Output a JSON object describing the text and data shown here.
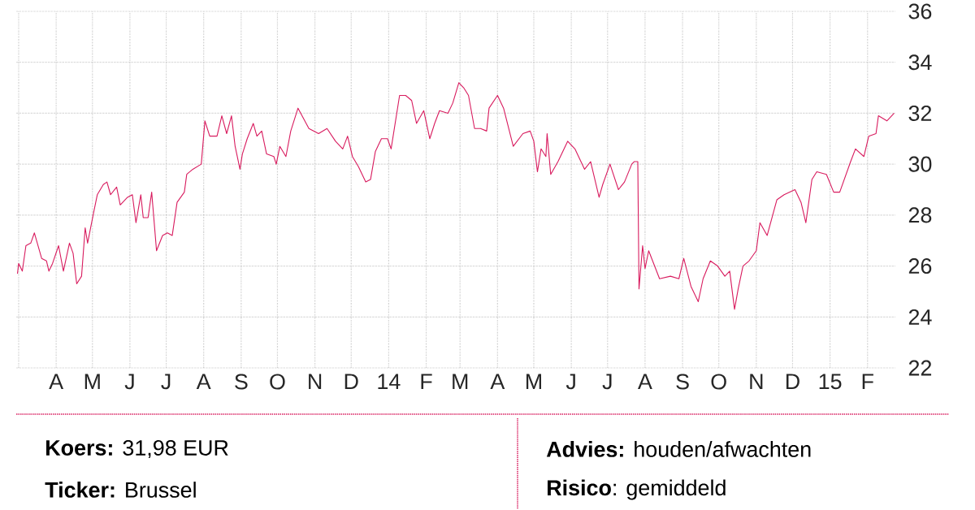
{
  "chart_data": {
    "type": "line",
    "color": "#d81b5e",
    "grid": true,
    "x": [
      "2013-02-28",
      "2013-03-01",
      "2013-03-04",
      "2013-03-07",
      "2013-03-11",
      "2013-03-14",
      "2013-03-20",
      "2013-03-24",
      "2013-03-26",
      "2013-03-29",
      "2013-04-03",
      "2013-04-07",
      "2013-04-12",
      "2013-04-15",
      "2013-04-18",
      "2013-04-22",
      "2013-04-25",
      "2013-04-27",
      "2013-05-02",
      "2013-05-05",
      "2013-05-10",
      "2013-05-13",
      "2013-05-16",
      "2013-05-21",
      "2013-05-24",
      "2013-05-30",
      "2013-06-03",
      "2013-06-06",
      "2013-06-10",
      "2013-06-12",
      "2013-06-16",
      "2013-06-19",
      "2013-06-23",
      "2013-06-28",
      "2013-07-02",
      "2013-07-06",
      "2013-07-10",
      "2013-07-16",
      "2013-07-18",
      "2013-07-23",
      "2013-07-30",
      "2013-08-02",
      "2013-08-06",
      "2013-08-12",
      "2013-08-16",
      "2013-08-20",
      "2013-08-24",
      "2013-08-27",
      "2013-08-31",
      "2013-09-02",
      "2013-09-06",
      "2013-09-11",
      "2013-09-14",
      "2013-09-18",
      "2013-09-22",
      "2013-09-28",
      "2013-09-30",
      "2013-10-03",
      "2013-10-08",
      "2013-10-12",
      "2013-10-18",
      "2013-10-27",
      "2013-11-04",
      "2013-11-11",
      "2013-11-18",
      "2013-11-24",
      "2013-11-28",
      "2013-12-02",
      "2013-12-07",
      "2013-12-13",
      "2013-12-17",
      "2013-12-21",
      "2013-12-26",
      "2013-12-31",
      "2014-01-03",
      "2014-01-10",
      "2014-01-15",
      "2014-01-20",
      "2014-01-24",
      "2014-01-30",
      "2014-02-04",
      "2014-02-08",
      "2014-02-12",
      "2014-02-19",
      "2014-02-23",
      "2014-02-28",
      "2014-03-04",
      "2014-03-08",
      "2014-03-13",
      "2014-03-18",
      "2014-03-23",
      "2014-03-25",
      "2014-04-01",
      "2014-04-06",
      "2014-04-14",
      "2014-04-22",
      "2014-04-28",
      "2014-05-01",
      "2014-05-04",
      "2014-05-07",
      "2014-05-11",
      "2014-05-12",
      "2014-05-15",
      "2014-05-21",
      "2014-05-29",
      "2014-06-04",
      "2014-06-12",
      "2014-06-17",
      "2014-06-24",
      "2014-06-27",
      "2014-07-03",
      "2014-07-10",
      "2014-07-15",
      "2014-07-21",
      "2014-07-23",
      "2014-07-26",
      "2014-07-27",
      "2014-07-30",
      "2014-08-01",
      "2014-08-04",
      "2014-08-13",
      "2014-08-22",
      "2014-08-29",
      "2014-09-02",
      "2014-09-08",
      "2014-09-14",
      "2014-09-18",
      "2014-09-24",
      "2014-09-30",
      "2014-10-06",
      "2014-10-10",
      "2014-10-14",
      "2014-10-17",
      "2014-10-21",
      "2014-10-26",
      "2014-11-01",
      "2014-11-04",
      "2014-11-10",
      "2014-11-18",
      "2014-11-24",
      "2014-12-03",
      "2014-12-08",
      "2014-12-12",
      "2014-12-17",
      "2014-12-21",
      "2014-12-29",
      "2015-01-04",
      "2015-01-09",
      "2015-01-18",
      "2015-01-22",
      "2015-01-29",
      "2015-02-02",
      "2015-02-08",
      "2015-02-10",
      "2015-02-17",
      "2015-02-23"
    ],
    "values": [
      25.7,
      26.1,
      25.8,
      26.8,
      26.9,
      27.3,
      26.3,
      26.2,
      25.8,
      26.1,
      26.8,
      25.8,
      26.9,
      26.5,
      25.3,
      25.6,
      27.5,
      26.9,
      28.1,
      28.8,
      29.2,
      29.3,
      28.8,
      29.1,
      28.4,
      28.7,
      28.8,
      27.7,
      28.8,
      27.9,
      27.9,
      28.9,
      26.6,
      27.2,
      27.3,
      27.2,
      28.5,
      28.9,
      29.6,
      29.8,
      30.0,
      31.7,
      31.1,
      31.1,
      31.9,
      31.2,
      31.9,
      30.7,
      29.8,
      30.4,
      31.0,
      31.6,
      31.1,
      31.3,
      30.4,
      30.3,
      30.0,
      30.7,
      30.3,
      31.3,
      32.2,
      31.4,
      31.2,
      31.4,
      30.9,
      30.6,
      31.1,
      30.3,
      29.9,
      29.3,
      29.4,
      30.5,
      31.0,
      31.0,
      30.6,
      32.7,
      32.7,
      32.5,
      31.6,
      32.1,
      31.0,
      31.6,
      32.1,
      32.0,
      32.4,
      33.2,
      33.0,
      32.7,
      31.4,
      31.4,
      31.3,
      32.2,
      32.7,
      32.2,
      30.7,
      31.2,
      31.3,
      30.9,
      29.7,
      30.6,
      30.3,
      31.2,
      29.6,
      30.1,
      30.9,
      30.6,
      29.8,
      30.1,
      28.7,
      29.2,
      30.0,
      29.0,
      29.3,
      30.0,
      30.1,
      30.1,
      25.1,
      26.8,
      25.9,
      26.6,
      25.5,
      25.6,
      25.5,
      26.3,
      25.2,
      24.6,
      25.5,
      26.2,
      26.0,
      25.6,
      25.8,
      24.3,
      25.1,
      26.0,
      26.2,
      26.6,
      27.7,
      27.2,
      28.6,
      28.8,
      29.0,
      28.5,
      27.7,
      29.4,
      29.7,
      29.6,
      28.9,
      28.9,
      30.1,
      30.6,
      30.3,
      31.1,
      31.2,
      31.9,
      31.7,
      32.0
    ],
    "xlim": [
      "2013-02-27",
      "2015-02-24"
    ],
    "xticks": [
      {
        "value": "2013-03-01",
        "label": null
      },
      {
        "value": "2013-04-01",
        "label": "A"
      },
      {
        "value": "2013-05-01",
        "label": "M"
      },
      {
        "value": "2013-06-01",
        "label": "J"
      },
      {
        "value": "2013-07-01",
        "label": "J"
      },
      {
        "value": "2013-08-01",
        "label": "A"
      },
      {
        "value": "2013-09-01",
        "label": "S"
      },
      {
        "value": "2013-10-01",
        "label": "O"
      },
      {
        "value": "2013-11-01",
        "label": "N"
      },
      {
        "value": "2013-12-01",
        "label": "D"
      },
      {
        "value": "2014-01-01",
        "label": "14"
      },
      {
        "value": "2014-02-01",
        "label": "F"
      },
      {
        "value": "2014-03-01",
        "label": "M"
      },
      {
        "value": "2014-04-01",
        "label": "A"
      },
      {
        "value": "2014-05-01",
        "label": "M"
      },
      {
        "value": "2014-06-01",
        "label": "J"
      },
      {
        "value": "2014-07-01",
        "label": "J"
      },
      {
        "value": "2014-08-01",
        "label": "A"
      },
      {
        "value": "2014-09-01",
        "label": "S"
      },
      {
        "value": "2014-10-01",
        "label": "O"
      },
      {
        "value": "2014-11-01",
        "label": "N"
      },
      {
        "value": "2014-12-01",
        "label": "D"
      },
      {
        "value": "2015-01-01",
        "label": "15"
      },
      {
        "value": "2015-02-01",
        "label": "F"
      }
    ],
    "ylim": [
      22,
      36
    ],
    "yticks": [
      22,
      24,
      26,
      28,
      30,
      32,
      34,
      36
    ],
    "annotations": [
      "**Koers:** 31,98 EUR",
      "**Ticker:** Brussel",
      "**Advies:** houden/afwachten",
      "**Risico**: gemiddeld"
    ]
  }
}
